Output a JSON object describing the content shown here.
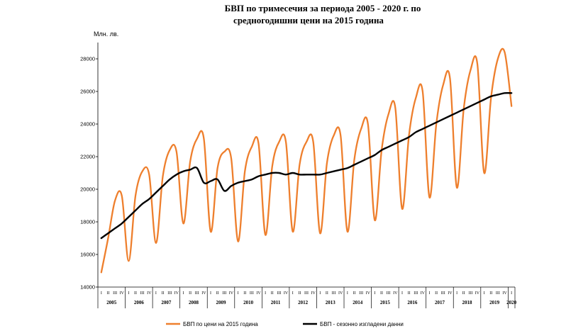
{
  "chart_data": {
    "type": "line",
    "title_line1": "БВП по тримесечия за периода 2005 - 2020 г. по",
    "title_line2": "средногодишни цени на 2015 година",
    "ylabel": "Млн. лв.",
    "ylim": [
      14000,
      29000
    ],
    "yticks": [
      14000,
      16000,
      18000,
      20000,
      22000,
      24000,
      26000,
      28000
    ],
    "grid": false,
    "legend_position": "bottom",
    "quarter_labels": [
      "I",
      "II",
      "III",
      "IV"
    ],
    "years": [
      "2005",
      "2006",
      "2007",
      "2008",
      "2009",
      "2010",
      "2011",
      "2012",
      "2013",
      "2014",
      "2015",
      "2016",
      "2017",
      "2018",
      "2019",
      "2020"
    ],
    "colors": {
      "series1": "#ee7f2d",
      "series2": "#000000",
      "axis": "#000000"
    },
    "series": [
      {
        "name": "БВП по цени на 2015 година",
        "values": [
          14900,
          17000,
          19300,
          19600,
          15600,
          19600,
          21100,
          20900,
          16700,
          20800,
          22400,
          22300,
          17900,
          21700,
          23100,
          23100,
          17400,
          21300,
          22300,
          21900,
          16800,
          21100,
          22600,
          22800,
          17200,
          21400,
          22900,
          22900,
          17400,
          21500,
          22900,
          22900,
          17300,
          21600,
          23300,
          23300,
          17400,
          21800,
          23700,
          24000,
          18100,
          22400,
          24600,
          25000,
          18800,
          23300,
          25600,
          26000,
          19500,
          24000,
          26400,
          26800,
          20100,
          24900,
          27300,
          27700,
          21000,
          25600,
          28000,
          28400,
          25100
        ]
      },
      {
        "name": "БВП - сезонно изгладени данни",
        "values": [
          17000,
          17300,
          17600,
          17900,
          18300,
          18700,
          19100,
          19400,
          19800,
          20200,
          20600,
          20900,
          21100,
          21200,
          21300,
          20400,
          20500,
          20600,
          19900,
          20200,
          20400,
          20500,
          20600,
          20800,
          20900,
          21000,
          21000,
          20900,
          21000,
          20900,
          20900,
          20900,
          20900,
          21000,
          21100,
          21200,
          21300,
          21500,
          21700,
          21900,
          22100,
          22400,
          22600,
          22800,
          23000,
          23200,
          23500,
          23700,
          23900,
          24100,
          24300,
          24500,
          24700,
          24900,
          25100,
          25300,
          25500,
          25700,
          25800,
          25900,
          25900
        ]
      }
    ]
  }
}
